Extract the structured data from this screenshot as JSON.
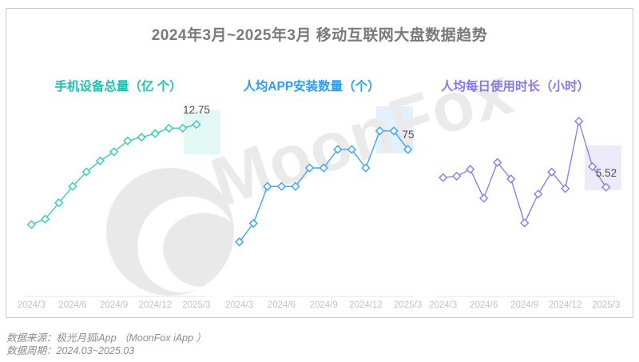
{
  "title": "2024年3月~2025年3月 移动互联网大盘数据趋势",
  "watermark": {
    "text": "MoonFox",
    "color": "#EAEAEA"
  },
  "footer": {
    "source": "数据来源：极光月狐iApp （MoonFox iApp ）",
    "period": "数据周期：2024.03~2025.03"
  },
  "chart_data": [
    {
      "type": "line",
      "title": "手机设备总量（亿 个）",
      "title_color": "#1CC3B3",
      "color": "#3CCCC3",
      "highlight_color": "#E3F7F5",
      "x": [
        "2024/3",
        "2024/4",
        "2024/5",
        "2024/6",
        "2024/7",
        "2024/8",
        "2024/9",
        "2024/10",
        "2024/11",
        "2024/12",
        "2025/1",
        "2025/2",
        "2025/3"
      ],
      "x_tick_labels": [
        "2024/3",
        "2024/6",
        "2024/9",
        "2024/12",
        "2025/3"
      ],
      "values": [
        12.2,
        12.23,
        12.32,
        12.41,
        12.49,
        12.55,
        12.6,
        12.66,
        12.68,
        12.7,
        12.73,
        12.73,
        12.75
      ],
      "last_value_label": "12.75",
      "ylim": [
        12.1,
        12.85
      ],
      "grid": false,
      "legend": false,
      "marker": "diamond"
    },
    {
      "type": "line",
      "title": "人均APP安装数量（个）",
      "title_color": "#2E9CF0",
      "color": "#41A4F4",
      "highlight_color": "#E3F1FC",
      "x": [
        "2024/3",
        "2024/4",
        "2024/5",
        "2024/6",
        "2024/7",
        "2024/8",
        "2024/9",
        "2024/10",
        "2024/11",
        "2024/12",
        "2025/1",
        "2025/2",
        "2025/3"
      ],
      "x_tick_labels": [
        "2024/3",
        "2024/6",
        "2024/9",
        "2024/12",
        "2025/3"
      ],
      "values": [
        65,
        67,
        71,
        71,
        71,
        73,
        73,
        75,
        75,
        73,
        77,
        77,
        75
      ],
      "last_value_label": "75",
      "ylim": [
        62,
        79
      ],
      "grid": false,
      "legend": false,
      "marker": "diamond"
    },
    {
      "type": "line",
      "title": "人均每日使用时长（小时）",
      "title_color": "#8678ED",
      "color": "#8C80EC",
      "highlight_color": "#EDEBF9",
      "x": [
        "2024/3",
        "2024/4",
        "2024/5",
        "2024/6",
        "2024/7",
        "2024/8",
        "2024/9",
        "2024/10",
        "2024/11",
        "2024/12",
        "2025/1",
        "2025/2",
        "2025/3"
      ],
      "x_tick_labels": [
        "2024/3",
        "2024/6",
        "2024/9",
        "2024/12",
        "2025/3"
      ],
      "values": [
        5.59,
        5.6,
        5.65,
        5.44,
        5.7,
        5.58,
        5.26,
        5.47,
        5.63,
        5.51,
        6.0,
        5.67,
        5.52
      ],
      "last_value_label": "5.52",
      "ylim": [
        5.1,
        6.1
      ],
      "grid": false,
      "legend": false,
      "marker": "diamond"
    }
  ]
}
